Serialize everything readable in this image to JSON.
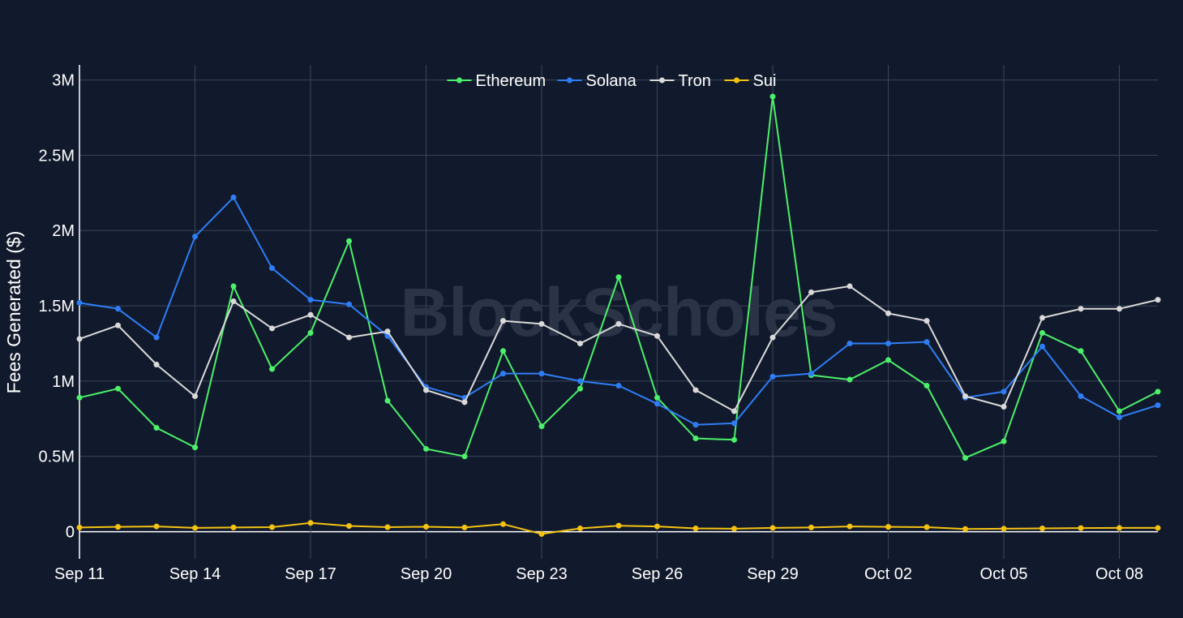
{
  "chart_data": {
    "type": "line",
    "title": "",
    "xlabel": "",
    "ylabel": "Fees Generated ($)",
    "watermark": "BlockScholes",
    "legend_position": "top-center",
    "grid": true,
    "xlim": [
      0,
      28
    ],
    "ylim": [
      -180000,
      3100000
    ],
    "y_ticks": [
      0,
      500000,
      1000000,
      1500000,
      2000000,
      2500000,
      3000000
    ],
    "y_tick_labels": [
      "0",
      "0.5M",
      "1M",
      "1.5M",
      "2M",
      "2.5M",
      "3M"
    ],
    "x_ticks": [
      0,
      3,
      6,
      9,
      12,
      15,
      18,
      21,
      24,
      27
    ],
    "x_tick_labels": [
      "Sep 11",
      "Sep 14",
      "Sep 17",
      "Sep 20",
      "Sep 23",
      "Sep 26",
      "Sep 29",
      "Oct 02",
      "Oct 05",
      "Oct 08"
    ],
    "x": [
      "Sep 11",
      "Sep 12",
      "Sep 13",
      "Sep 14",
      "Sep 15",
      "Sep 16",
      "Sep 17",
      "Sep 18",
      "Sep 19",
      "Sep 20",
      "Sep 21",
      "Sep 22",
      "Sep 23",
      "Sep 24",
      "Sep 25",
      "Sep 26",
      "Sep 27",
      "Sep 28",
      "Sep 29",
      "Sep 30",
      "Oct 01",
      "Oct 02",
      "Oct 03",
      "Oct 04",
      "Oct 05",
      "Oct 06",
      "Oct 07",
      "Oct 08",
      "Oct 09"
    ],
    "series": [
      {
        "name": "Ethereum",
        "color": "#4cf06a",
        "values": [
          890000,
          950000,
          690000,
          560000,
          1630000,
          1080000,
          1320000,
          1930000,
          870000,
          550000,
          500000,
          1200000,
          700000,
          950000,
          1690000,
          890000,
          620000,
          610000,
          2890000,
          1040000,
          1010000,
          1140000,
          970000,
          490000,
          600000,
          1320000,
          1200000,
          800000,
          930000
        ]
      },
      {
        "name": "Solana",
        "color": "#2f7df6",
        "values": [
          1520000,
          1480000,
          1290000,
          1960000,
          2220000,
          1750000,
          1540000,
          1510000,
          1300000,
          960000,
          890000,
          1050000,
          1050000,
          1000000,
          970000,
          850000,
          710000,
          720000,
          1030000,
          1050000,
          1250000,
          1250000,
          1260000,
          890000,
          930000,
          1230000,
          900000,
          760000,
          840000
        ]
      },
      {
        "name": "Tron",
        "color": "#d9d9d9",
        "values": [
          1280000,
          1370000,
          1110000,
          900000,
          1530000,
          1350000,
          1440000,
          1290000,
          1330000,
          940000,
          860000,
          1400000,
          1380000,
          1250000,
          1380000,
          1300000,
          940000,
          800000,
          1290000,
          1590000,
          1630000,
          1450000,
          1400000,
          900000,
          830000,
          1420000,
          1480000,
          1480000,
          1540000
        ]
      },
      {
        "name": "Sui",
        "color": "#f5c211",
        "values": [
          28000,
          32000,
          35000,
          25000,
          28000,
          30000,
          58000,
          38000,
          30000,
          33000,
          28000,
          50000,
          -15000,
          22000,
          40000,
          35000,
          22000,
          20000,
          25000,
          28000,
          35000,
          32000,
          30000,
          18000,
          20000,
          22000,
          24000,
          25000,
          25000
        ]
      }
    ]
  }
}
